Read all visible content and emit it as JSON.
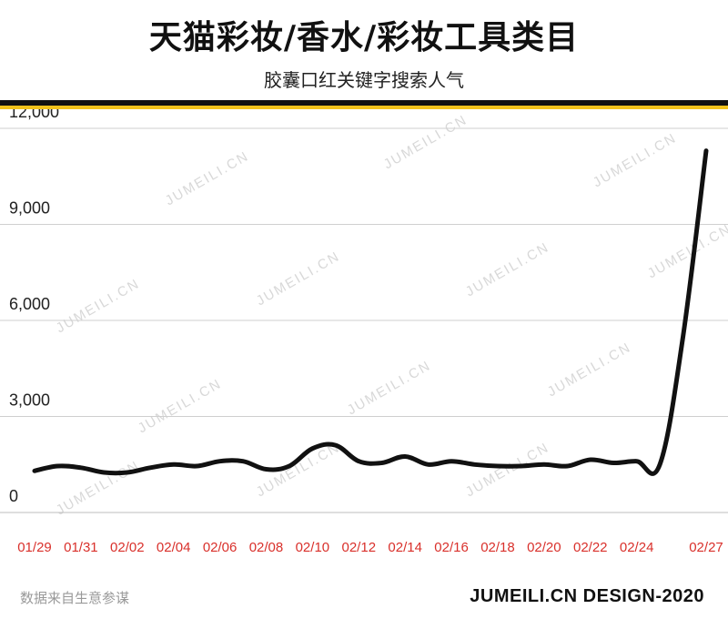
{
  "header": {
    "title": "天猫彩妆/香水/彩妆工具类目",
    "subtitle": "胶囊口红关键字搜索人气"
  },
  "footer": {
    "source": "数据来自生意参谋",
    "brand": "JUMEILI.CN DESIGN-2020"
  },
  "watermark": "JUMEILI.CN",
  "colors": {
    "line": "#111111",
    "accent_band": "#f2c21b",
    "x_tick_label": "#d9302b",
    "y_tick_label": "#222222",
    "grid": "#cfcfcf"
  },
  "chart_data": {
    "type": "line",
    "title": "胶囊口红关键字搜索人气",
    "xlabel": "",
    "ylabel": "",
    "ylim": [
      0,
      12000
    ],
    "yticks": [
      0,
      3000,
      6000,
      9000,
      12000
    ],
    "ytick_labels": [
      "0",
      "3,000",
      "6,000",
      "9,000",
      "12,000"
    ],
    "grid": true,
    "x": [
      "01/29",
      "01/30",
      "01/31",
      "02/01",
      "02/02",
      "02/03",
      "02/04",
      "02/05",
      "02/06",
      "02/07",
      "02/08",
      "02/09",
      "02/10",
      "02/11",
      "02/12",
      "02/13",
      "02/14",
      "02/15",
      "02/16",
      "02/17",
      "02/18",
      "02/19",
      "02/20",
      "02/21",
      "02/22",
      "02/23",
      "02/24",
      "02/25",
      "02/26",
      "02/27"
    ],
    "xtick_labels": [
      "01/29",
      "01/31",
      "02/02",
      "02/04",
      "02/06",
      "02/08",
      "02/10",
      "02/12",
      "02/14",
      "02/16",
      "02/18",
      "02/20",
      "02/22",
      "02/24",
      "02/27"
    ],
    "series": [
      {
        "values": [
          1300,
          1450,
          1400,
          1250,
          1250,
          1400,
          1500,
          1450,
          1600,
          1600,
          1350,
          1450,
          2000,
          2100,
          1600,
          1550,
          1750,
          1500,
          1600,
          1500,
          1450,
          1450,
          1500,
          1450,
          1650,
          1550,
          1600,
          1500,
          5500,
          11300
        ]
      }
    ]
  }
}
